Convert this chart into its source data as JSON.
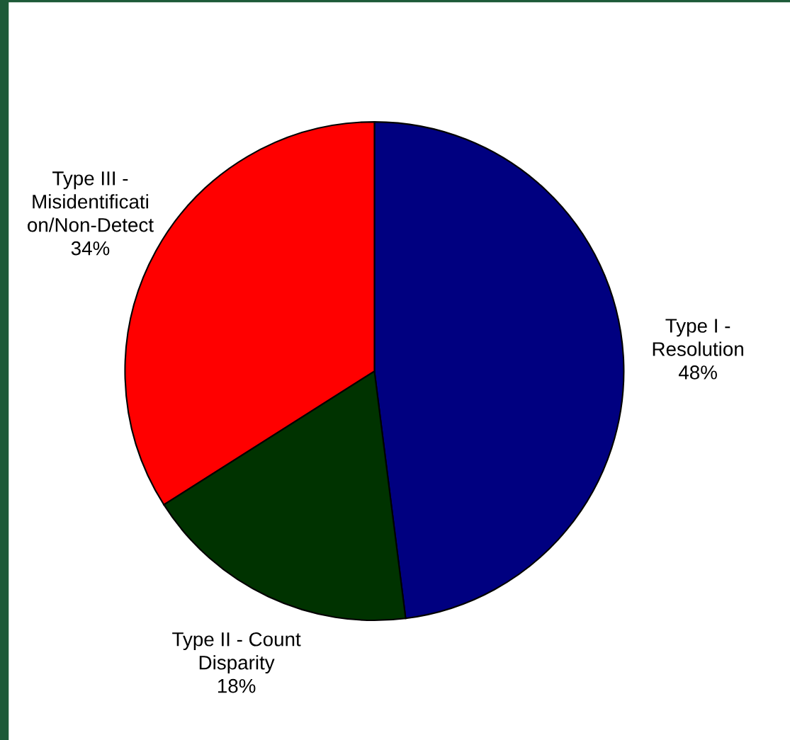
{
  "chart_data": {
    "type": "pie",
    "categories": [
      "Type I -\nResolution",
      "Type II - Count\nDisparity",
      "Type III -\nMisidentificati\non/Non-Detect"
    ],
    "values": [
      48,
      18,
      34
    ],
    "value_labels": [
      "48%",
      "18%",
      "34%"
    ],
    "colors": [
      "#000080",
      "#003300",
      "#ff0000"
    ]
  }
}
